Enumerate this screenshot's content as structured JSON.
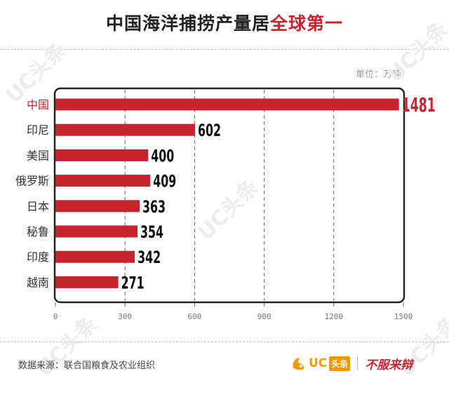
{
  "header": {
    "title_main": "中国海洋捕捞产量居",
    "title_highlight": "全球第一"
  },
  "unit_label": "单位：万吨",
  "footer": {
    "source": "数据来源：联合国粮食及农业组织",
    "brand_uc": "UC",
    "brand_toutiao": "头条",
    "slogan": "不服来辩"
  },
  "watermark": "UC头条",
  "colors": {
    "bar": "#c8242f",
    "highlight": "#c8242f",
    "text": "#333333"
  },
  "chart_data": {
    "type": "bar",
    "orientation": "horizontal",
    "categories": [
      "中国",
      "印尼",
      "美国",
      "俄罗斯",
      "日本",
      "秘鲁",
      "印度",
      "越南"
    ],
    "values": [
      1481,
      602,
      400,
      409,
      363,
      354,
      342,
      271
    ],
    "xlim": [
      0,
      1500
    ],
    "xticks": [
      "0",
      "300",
      "600",
      "900",
      "1200",
      "1500"
    ],
    "unit": "万吨",
    "highlight_category": "中国",
    "grid": "vertical dashed"
  }
}
